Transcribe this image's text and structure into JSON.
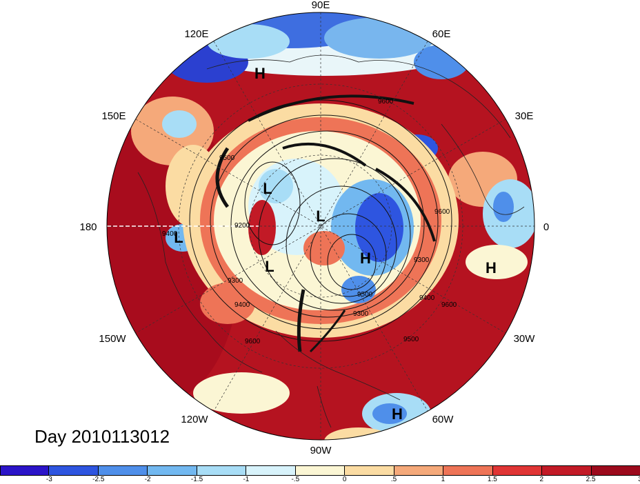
{
  "longitude_labels": {
    "lon_90e": "90E",
    "lon_120e": "120E",
    "lon_60e": "60E",
    "lon_150e": "150E",
    "lon_30e": "30E",
    "lon_180": "180",
    "lon_0": "0",
    "lon_150w": "150W",
    "lon_30w": "30W",
    "lon_120w": "120W",
    "lon_60w": "60W",
    "lon_90w": "90W"
  },
  "pressure_centers": [
    {
      "label": "H"
    },
    {
      "label": "L"
    },
    {
      "label": "L"
    },
    {
      "label": "L"
    },
    {
      "label": "L"
    },
    {
      "label": "H"
    },
    {
      "label": "H"
    },
    {
      "label": "H"
    }
  ],
  "contour_labels": [
    "9600",
    "9500",
    "9400",
    "9300",
    "9200",
    "9600",
    "9400",
    "9500",
    "9300",
    "9600",
    "9300",
    "9400",
    "9600",
    "9500"
  ],
  "day_label": "Day 2010113012",
  "colorbar": {
    "colors": [
      "#2b14c8",
      "#2e55e0",
      "#4f8fea",
      "#72b8f0",
      "#a8ddf6",
      "#d8f3fb",
      "#fbf6d4",
      "#fbdca3",
      "#f5a97a",
      "#ee7457",
      "#e03535",
      "#c21a26",
      "#9c0a1c"
    ],
    "ticks": [
      "-3",
      "-2.5",
      "-2",
      "-1.5",
      "-1",
      "-.5",
      "0",
      ".5",
      "1",
      "1.5",
      "2",
      "2.5",
      "3"
    ]
  }
}
